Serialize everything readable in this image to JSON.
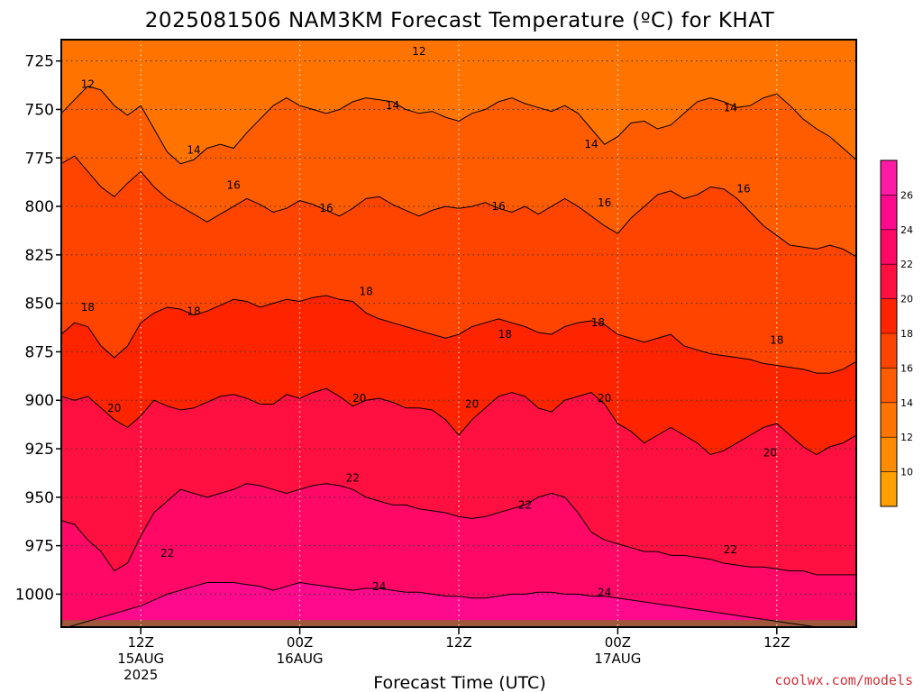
{
  "chart_data": {
    "type": "heatmap",
    "title": "2025081506 NAM3KM Forecast Temperature (ºC) for KHAT",
    "xlabel": "Forecast Time (UTC)",
    "ylabel": "",
    "y_scale": "pressure (hPa), inverted",
    "ylim": [
      1017,
      714
    ],
    "y_ticks": [
      725,
      750,
      775,
      800,
      825,
      850,
      875,
      900,
      925,
      950,
      975,
      1000
    ],
    "xlim": [
      0,
      60
    ],
    "x_ticks": [
      {
        "x": 6,
        "label": "12Z",
        "date": "15AUG",
        "year": "2025"
      },
      {
        "x": 18,
        "label": "00Z",
        "date": "16AUG",
        "year": ""
      },
      {
        "x": 30,
        "label": "12Z",
        "date": "",
        "year": ""
      },
      {
        "x": 42,
        "label": "00Z",
        "date": "17AUG",
        "year": ""
      },
      {
        "x": 54,
        "label": "12Z",
        "date": "",
        "year": ""
      }
    ],
    "grid": true,
    "colorbar": {
      "levels": [
        10,
        12,
        14,
        16,
        18,
        20,
        22,
        24,
        26
      ],
      "colors": [
        "#ffa000",
        "#ff8c00",
        "#ff7400",
        "#ff5c00",
        "#ff4400",
        "#ff2400",
        "#ff1040",
        "#ff0866",
        "#ff0a8c",
        "#ff1aa5"
      ],
      "placement": "right"
    },
    "isotherms": [
      {
        "value": 12,
        "pressures": [
          712,
          712,
          712,
          712,
          712,
          712,
          712,
          712,
          712,
          712,
          712,
          712,
          713,
          713,
          712,
          712,
          712,
          712,
          712,
          712,
          712,
          712,
          712,
          712,
          712,
          712,
          712,
          712,
          712,
          712,
          712,
          712,
          712,
          712,
          712,
          712,
          712,
          712,
          712,
          712,
          712,
          712,
          712,
          712,
          712,
          712,
          712,
          712,
          712,
          712,
          712,
          712,
          712,
          712,
          712,
          712,
          712,
          712,
          712,
          712,
          712
        ]
      },
      {
        "value": 14,
        "pressures": [
          752,
          745,
          738,
          740,
          748,
          753,
          748,
          760,
          772,
          778,
          776,
          770,
          768,
          770,
          762,
          755,
          748,
          744,
          748,
          750,
          752,
          750,
          746,
          744,
          745,
          746,
          750,
          752,
          751,
          754,
          756,
          752,
          750,
          746,
          744,
          747,
          749,
          751,
          748,
          752,
          760,
          768,
          764,
          757,
          756,
          760,
          758,
          752,
          746,
          744,
          746,
          749,
          748,
          744,
          742,
          748,
          755,
          760,
          764,
          770,
          776
        ]
      },
      {
        "value": 16,
        "pressures": [
          778,
          774,
          782,
          790,
          795,
          788,
          782,
          790,
          796,
          800,
          804,
          808,
          804,
          800,
          796,
          799,
          803,
          801,
          797,
          799,
          802,
          805,
          801,
          796,
          795,
          799,
          802,
          805,
          802,
          800,
          801,
          800,
          798,
          801,
          803,
          800,
          804,
          800,
          796,
          800,
          805,
          810,
          814,
          806,
          800,
          794,
          792,
          796,
          794,
          790,
          791,
          796,
          803,
          810,
          815,
          820,
          821,
          822,
          820,
          822,
          826
        ]
      },
      {
        "value": 18,
        "pressures": [
          866,
          860,
          862,
          872,
          878,
          872,
          860,
          855,
          852,
          853,
          856,
          854,
          851,
          848,
          849,
          852,
          850,
          848,
          849,
          847,
          846,
          848,
          849,
          855,
          858,
          860,
          862,
          864,
          866,
          868,
          866,
          862,
          860,
          858,
          860,
          862,
          865,
          866,
          862,
          860,
          859,
          861,
          866,
          868,
          870,
          868,
          866,
          872,
          874,
          876,
          877,
          878,
          879,
          881,
          882,
          883,
          884,
          886,
          886,
          884,
          880
        ]
      },
      {
        "value": 20,
        "pressures": [
          898,
          900,
          898,
          904,
          910,
          914,
          908,
          900,
          903,
          905,
          904,
          901,
          898,
          897,
          899,
          902,
          902,
          897,
          899,
          896,
          894,
          898,
          903,
          900,
          899,
          901,
          904,
          904,
          905,
          910,
          918,
          910,
          904,
          898,
          896,
          898,
          904,
          906,
          900,
          898,
          896,
          902,
          912,
          916,
          922,
          918,
          914,
          918,
          922,
          928,
          926,
          922,
          918,
          914,
          912,
          918,
          924,
          928,
          924,
          922,
          918
        ]
      },
      {
        "value": 22,
        "pressures": [
          962,
          964,
          972,
          978,
          988,
          984,
          970,
          958,
          952,
          946,
          948,
          950,
          948,
          946,
          943,
          944,
          946,
          948,
          946,
          944,
          943,
          944,
          946,
          950,
          952,
          954,
          954,
          956,
          957,
          958,
          960,
          961,
          960,
          958,
          956,
          954,
          950,
          948,
          950,
          958,
          968,
          972,
          974,
          976,
          978,
          978,
          980,
          980,
          981,
          982,
          984,
          985,
          986,
          986,
          987,
          988,
          988,
          990,
          990,
          990,
          990
        ]
      },
      {
        "value": 24,
        "pressures": [
          1018,
          1016,
          1014,
          1012,
          1010,
          1008,
          1006,
          1003,
          1000,
          998,
          996,
          994,
          994,
          994,
          995,
          996,
          998,
          996,
          994,
          995,
          996,
          997,
          998,
          997,
          997,
          998,
          999,
          999,
          1000,
          1001,
          1001,
          1002,
          1002,
          1001,
          1000,
          1000,
          999,
          999,
          1000,
          1000,
          1001,
          1001,
          1002,
          1003,
          1004,
          1005,
          1006,
          1007,
          1008,
          1009,
          1010,
          1011,
          1012,
          1013,
          1014,
          1015,
          1016,
          1017,
          1018,
          1018,
          1018
        ]
      }
    ],
    "contour_labels": [
      {
        "text": "12",
        "x": 2.0,
        "p": 737
      },
      {
        "text": "12",
        "x": 27.0,
        "p": 720
      },
      {
        "text": "14",
        "x": 10.0,
        "p": 771
      },
      {
        "text": "14",
        "x": 25.0,
        "p": 748
      },
      {
        "text": "14",
        "x": 40.0,
        "p": 768
      },
      {
        "text": "14",
        "x": 50.5,
        "p": 749
      },
      {
        "text": "16",
        "x": 13.0,
        "p": 789
      },
      {
        "text": "16",
        "x": 20.0,
        "p": 801
      },
      {
        "text": "16",
        "x": 33.0,
        "p": 800
      },
      {
        "text": "16",
        "x": 41.0,
        "p": 798
      },
      {
        "text": "16",
        "x": 51.5,
        "p": 791
      },
      {
        "text": "18",
        "x": 2.0,
        "p": 852
      },
      {
        "text": "18",
        "x": 10.0,
        "p": 854
      },
      {
        "text": "18",
        "x": 23.0,
        "p": 844
      },
      {
        "text": "18",
        "x": 33.5,
        "p": 866
      },
      {
        "text": "18",
        "x": 40.5,
        "p": 860
      },
      {
        "text": "18",
        "x": 54.0,
        "p": 869
      },
      {
        "text": "20",
        "x": 4.0,
        "p": 904
      },
      {
        "text": "20",
        "x": 22.5,
        "p": 899
      },
      {
        "text": "20",
        "x": 31.0,
        "p": 902
      },
      {
        "text": "20",
        "x": 41.0,
        "p": 899
      },
      {
        "text": "20",
        "x": 53.5,
        "p": 927
      },
      {
        "text": "22",
        "x": 8.0,
        "p": 979
      },
      {
        "text": "22",
        "x": 22.0,
        "p": 940
      },
      {
        "text": "22",
        "x": 35.0,
        "p": 954
      },
      {
        "text": "22",
        "x": 50.5,
        "p": 977
      },
      {
        "text": "24",
        "x": 24.0,
        "p": 996
      },
      {
        "text": "24",
        "x": 41.0,
        "p": 999
      }
    ],
    "terrain": {
      "color": "#a0583c",
      "pressure": 1012
    }
  },
  "credit": "coolwx.com/models"
}
